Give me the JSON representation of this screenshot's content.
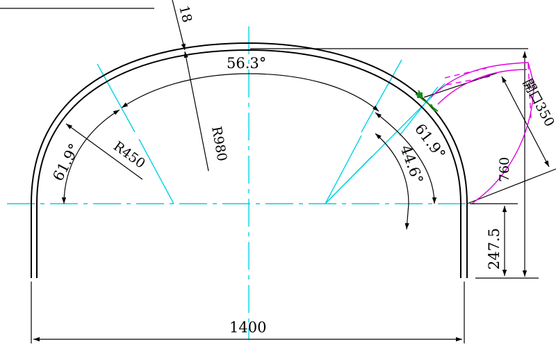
{
  "labels": {
    "thickness": "18",
    "angle_top": "56.3°",
    "angle_left": "61.9°",
    "angle_right": "61.9°",
    "angle_inner": "44.6°",
    "radius_large": "R980",
    "radius_small": "R450",
    "opening": "開口350",
    "height_right": "760",
    "height_base": "247.5",
    "width": "1400"
  },
  "colors": {
    "outline": "#000000",
    "centerline": "#00d2e6",
    "opening_sketch": "#e000e0",
    "bolt": "#1a8a1a"
  }
}
